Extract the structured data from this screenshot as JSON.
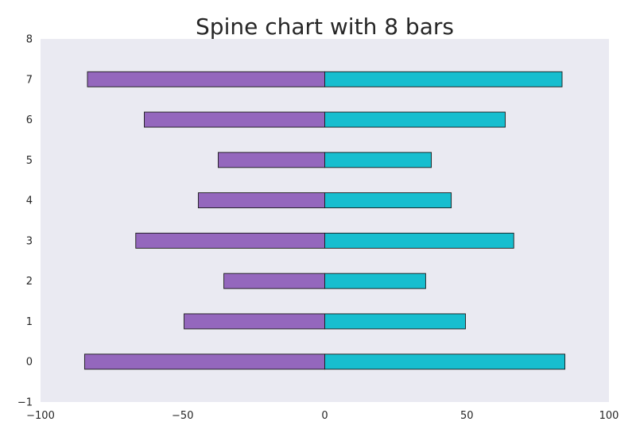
{
  "chart_data": {
    "type": "bar",
    "orientation": "horizontal",
    "layout": "diverging",
    "title": "Spine chart with 8 bars",
    "xlabel": "",
    "ylabel": "",
    "categories": [
      "0",
      "1",
      "2",
      "3",
      "4",
      "5",
      "6",
      "7"
    ],
    "series": [
      {
        "values": [
          -84.5,
          -49.5,
          -35.5,
          -66.5,
          -44.5,
          -37.5,
          -63.5,
          -83.5
        ]
      },
      {
        "values": [
          84.5,
          49.5,
          35.5,
          66.5,
          44.5,
          37.5,
          63.5,
          83.5
        ]
      }
    ],
    "xlim": [
      -100,
      100
    ],
    "ylim": [
      -1,
      8
    ],
    "xticks": [
      -100,
      -50,
      0,
      50,
      100
    ],
    "xtick_labels": [
      "−100",
      "−50",
      "0",
      "50",
      "100"
    ],
    "yticks": [
      -1,
      0,
      1,
      2,
      3,
      4,
      5,
      6,
      7,
      8
    ],
    "ytick_labels": [
      "−1",
      "0",
      "1",
      "2",
      "3",
      "4",
      "5",
      "6",
      "7",
      "8"
    ],
    "grid": false,
    "legend": "none",
    "colors": {
      "plot_background": "#eaeaf2",
      "negative": "#9467bd",
      "positive": "#17becf",
      "bar_edge": "#1a1a1a",
      "text": "#262626"
    }
  }
}
